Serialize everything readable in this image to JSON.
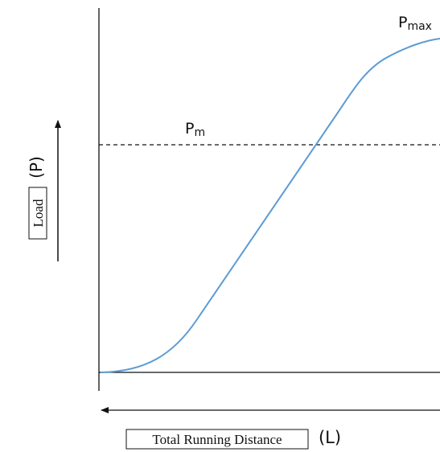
{
  "labels": {
    "p_max": {
      "main": "P",
      "sub": "max"
    },
    "p_m": {
      "main": "P",
      "sub": "m"
    },
    "y_axis": {
      "name": "Load",
      "symbol": "(P)"
    },
    "x_axis": {
      "name": "Total Running Distance",
      "symbol": "(L)"
    }
  }
}
